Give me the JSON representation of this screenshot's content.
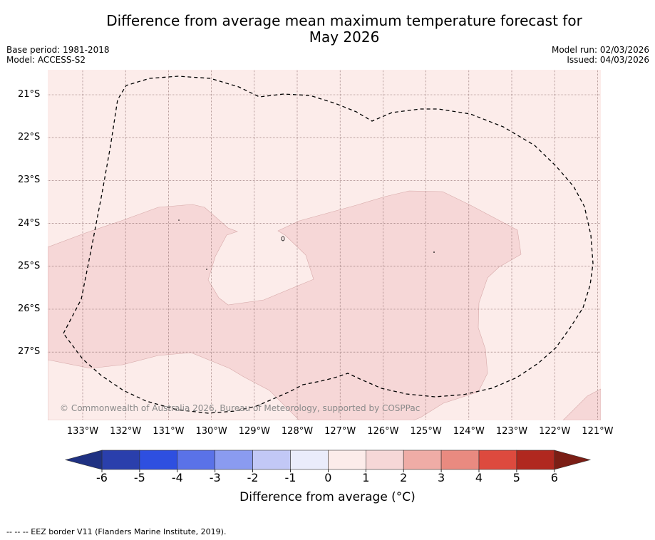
{
  "title": {
    "line1": "Difference from average mean maximum temperature forecast for",
    "line2": "May 2026"
  },
  "meta": {
    "base_period": "Base period: 1981-2018",
    "model": "Model: ACCESS-S2",
    "model_run": "Model run: 02/03/2026",
    "issued": "Issued: 04/03/2026"
  },
  "map": {
    "lat_labels": [
      "21°S",
      "22°S",
      "23°S",
      "24°S",
      "25°S",
      "26°S",
      "27°S"
    ],
    "lon_labels": [
      "133°W",
      "132°W",
      "131°W",
      "130°W",
      "129°W",
      "128°W",
      "127°W",
      "126°W",
      "125°W",
      "124°W",
      "123°W",
      "122°W",
      "121°W"
    ],
    "background_category": "0 to 1",
    "anomaly_region_category": "1 to 2",
    "copyright": "© Commonwealth of Australia 2026, Bureau of Meteorology, supported by COSPPac",
    "border_style": "dashed"
  },
  "colorbar": {
    "ticks": [
      "-6",
      "-5",
      "-4",
      "-3",
      "-2",
      "-1",
      "0",
      "1",
      "2",
      "3",
      "4",
      "5",
      "6"
    ],
    "colors": [
      "#2a3fac",
      "#2e4fe0",
      "#5a72e8",
      "#8a9bf0",
      "#c2c8f6",
      "#eaecfb",
      "#fcecea",
      "#f6d7d7",
      "#efaca6",
      "#e98a80",
      "#dd4a3e",
      "#b0281f"
    ],
    "under_color": "#1f3182",
    "over_color": "#7b1e15",
    "label": "Difference from average (°C)"
  },
  "footer": "--  --  -- EEZ border V11 (Flanders Marine Institute, 2019)."
}
